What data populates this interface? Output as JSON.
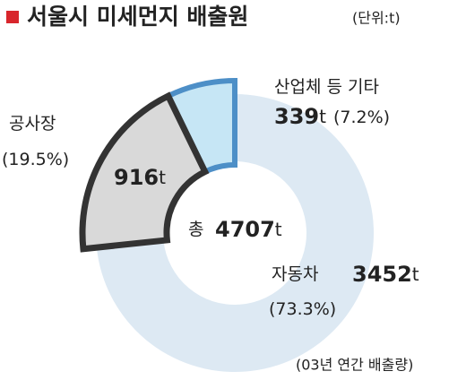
{
  "chart_data": {
    "type": "donut",
    "title": "서울시 미세먼지 배출원",
    "subtitle": "(단위:t)",
    "unit": "t",
    "total_label": "총",
    "total": 4707,
    "note": "(03년 연간 배출량)",
    "categories": [
      "산업체 등 기타",
      "공사장",
      "자동차"
    ],
    "values": [
      339,
      916,
      3452
    ],
    "percents": [
      7.2,
      19.5,
      73.3
    ],
    "percent_labels": [
      "(7.2%)",
      "(19.5%)",
      "(73.3%)"
    ],
    "colors": [
      "#c6e6f5",
      "#d9d9d9",
      "#dde9f3"
    ],
    "stroke_colors": [
      "#4d8fc7",
      "#333333",
      "none"
    ]
  }
}
